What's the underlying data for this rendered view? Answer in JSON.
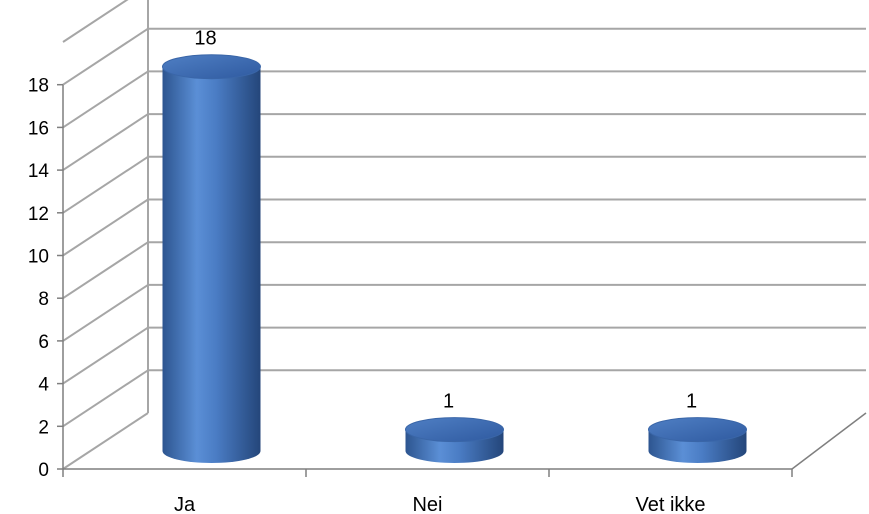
{
  "chart_data": {
    "type": "bar",
    "style": "3d-cylinder",
    "title": "",
    "xlabel": "",
    "ylabel": "",
    "categories": [
      "Ja",
      "Nei",
      "Vet ikke"
    ],
    "values": [
      18,
      1,
      1
    ],
    "data_labels": [
      "18",
      "1",
      "1"
    ],
    "ylim": [
      0,
      18
    ],
    "yticks": [
      "0",
      "2",
      "4",
      "6",
      "8",
      "10",
      "12",
      "14",
      "16",
      "18"
    ],
    "grid": true,
    "legend": "none",
    "colors": {
      "bar": "#4f81bd",
      "bar_dark": "#2f5597",
      "bar_light": "#7ea6dc",
      "grid": "#a6a6a6",
      "axis": "#7f7f7f"
    }
  }
}
